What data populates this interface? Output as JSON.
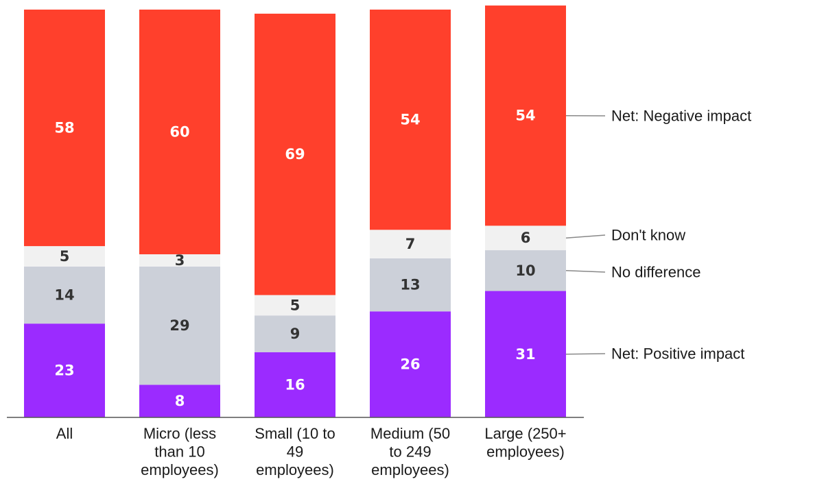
{
  "chart_data": {
    "type": "bar",
    "stacked": true,
    "title": "",
    "xlabel": "",
    "ylabel": "",
    "ylim": [
      0,
      100
    ],
    "categories": [
      [
        "All"
      ],
      [
        "Micro (less",
        "than 10",
        "employees)"
      ],
      [
        "Small (10 to",
        "49",
        "employees)"
      ],
      [
        "Medium (50",
        "to 249",
        "employees)"
      ],
      [
        "Large (250+",
        "employees)"
      ]
    ],
    "series": [
      {
        "name": "Net: Positive impact",
        "color": "#9b2bff",
        "label_color": "#ffffff",
        "values": [
          23,
          8,
          16,
          26,
          31
        ]
      },
      {
        "name": "No difference",
        "color": "#ccd0d9",
        "label_color": "#333333",
        "values": [
          14,
          29,
          9,
          13,
          10
        ]
      },
      {
        "name": "Don't know",
        "color": "#f1f1f1",
        "label_color": "#333333",
        "values": [
          5,
          3,
          5,
          7,
          6
        ]
      },
      {
        "name": "Net: Negative impact",
        "color": "#ff402c",
        "label_color": "#ffffff",
        "values": [
          58,
          60,
          69,
          54,
          54
        ]
      }
    ],
    "legend_placement": "right"
  }
}
